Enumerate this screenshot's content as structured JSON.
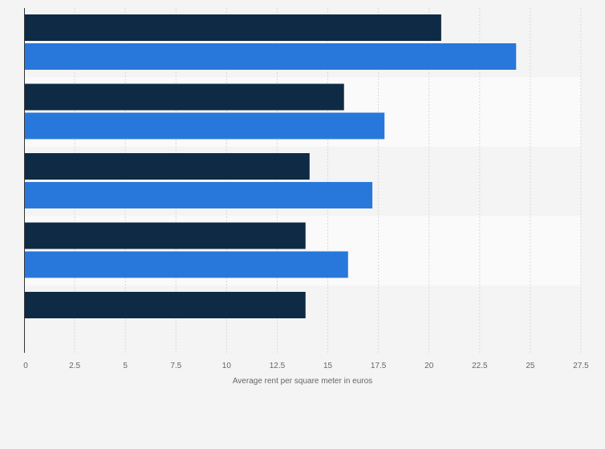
{
  "chart_data": {
    "type": "bar",
    "orientation": "horizontal",
    "categories": [
      "",
      "",
      "",
      "",
      ""
    ],
    "series": [
      {
        "values": [
          20.6,
          15.8,
          14.1,
          13.9,
          13.9
        ]
      },
      {
        "values": [
          24.3,
          17.8,
          17.2,
          16.0,
          null
        ]
      }
    ],
    "xlabel": "Average rent per square meter in euros",
    "xlim": [
      0,
      27.5
    ],
    "xticks": [
      "0",
      "2.5",
      "5",
      "7.5",
      "10",
      "12.5",
      "15",
      "17.5",
      "20",
      "22.5",
      "25",
      "27.5"
    ],
    "grid": "vertical dashed",
    "colors": [
      "#0f2a44",
      "#2878dc"
    ],
    "legend": "none"
  }
}
